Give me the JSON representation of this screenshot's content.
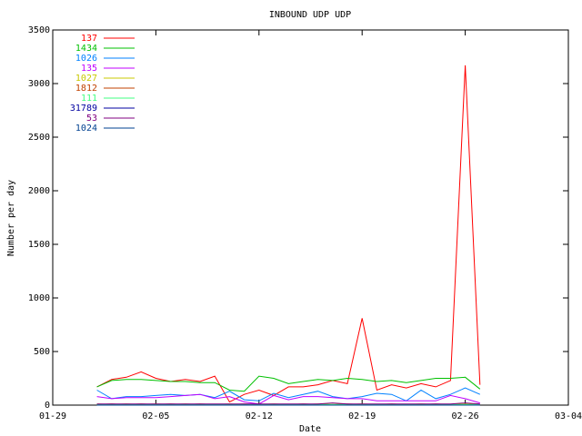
{
  "chart_data": {
    "type": "line",
    "title": "INBOUND UDP UDP",
    "x_label": "Date",
    "y_label": "Number per day",
    "x": [
      3,
      4,
      5,
      6,
      7,
      8,
      9,
      10,
      11,
      12,
      13,
      14,
      15,
      16,
      17,
      18,
      19,
      20,
      21,
      22,
      23,
      24,
      25,
      26,
      27,
      28,
      29
    ],
    "xlim": [
      0,
      35
    ],
    "xticks": [
      {
        "value": 0,
        "label": "01-29"
      },
      {
        "value": 7,
        "label": "02-05"
      },
      {
        "value": 14,
        "label": "02-12"
      },
      {
        "value": 21,
        "label": "02-19"
      },
      {
        "value": 28,
        "label": "02-26"
      },
      {
        "value": 35,
        "label": "03-04"
      }
    ],
    "ylim": [
      0,
      3500
    ],
    "yticks": [
      0,
      500,
      1000,
      1500,
      2000,
      2500,
      3000,
      3500
    ],
    "legend": "upper left",
    "series": [
      {
        "name": "137",
        "color": "#ff0000",
        "values": [
          170,
          240,
          260,
          310,
          250,
          220,
          240,
          220,
          270,
          30,
          100,
          140,
          90,
          170,
          170,
          190,
          230,
          200,
          810,
          140,
          190,
          160,
          200,
          170,
          230,
          3170,
          190
        ]
      },
      {
        "name": "1434",
        "color": "#00c000",
        "values": [
          170,
          230,
          240,
          240,
          230,
          220,
          220,
          210,
          210,
          140,
          130,
          270,
          250,
          200,
          220,
          240,
          230,
          250,
          240,
          220,
          230,
          210,
          230,
          250,
          250,
          260,
          150
        ]
      },
      {
        "name": "1026",
        "color": "#0080ff",
        "values": [
          140,
          60,
          80,
          80,
          90,
          100,
          90,
          100,
          70,
          130,
          50,
          40,
          110,
          70,
          100,
          130,
          80,
          60,
          80,
          110,
          100,
          40,
          140,
          60,
          100,
          160,
          100
        ]
      },
      {
        "name": "135",
        "color": "#c000ff",
        "values": [
          80,
          60,
          70,
          70,
          70,
          80,
          90,
          100,
          60,
          80,
          30,
          10,
          90,
          50,
          80,
          80,
          70,
          60,
          60,
          40,
          40,
          40,
          40,
          40,
          90,
          60,
          20
        ]
      },
      {
        "name": "1027",
        "color": "#c8c800",
        "values": [
          10,
          5,
          10,
          5,
          10,
          5,
          10,
          5,
          5,
          10,
          5,
          5,
          10,
          5,
          5,
          10,
          5,
          5,
          10,
          5,
          5,
          5,
          10,
          5,
          5,
          10,
          5
        ]
      },
      {
        "name": "1812",
        "color": "#c04000",
        "values": [
          5,
          10,
          5,
          10,
          5,
          10,
          5,
          10,
          5,
          5,
          10,
          5,
          5,
          5,
          10,
          5,
          5,
          10,
          5,
          5,
          10,
          5,
          5,
          10,
          5,
          5,
          5
        ]
      },
      {
        "name": "111",
        "color": "#40ff80",
        "values": [
          5,
          5,
          5,
          5,
          5,
          5,
          5,
          5,
          5,
          5,
          5,
          5,
          5,
          5,
          5,
          5,
          5,
          5,
          5,
          5,
          5,
          5,
          5,
          5,
          5,
          5,
          5
        ]
      },
      {
        "name": "31789",
        "color": "#0000a0",
        "values": [
          0,
          0,
          0,
          0,
          0,
          0,
          0,
          0,
          0,
          0,
          0,
          0,
          0,
          0,
          0,
          0,
          0,
          0,
          0,
          0,
          0,
          0,
          0,
          0,
          0,
          0,
          0
        ]
      },
      {
        "name": "53",
        "color": "#800080",
        "values": [
          10,
          10,
          10,
          10,
          10,
          10,
          10,
          10,
          10,
          10,
          10,
          10,
          10,
          10,
          10,
          10,
          20,
          10,
          10,
          10,
          10,
          10,
          10,
          10,
          10,
          20,
          10
        ]
      },
      {
        "name": "1024",
        "color": "#004090",
        "values": [
          0,
          0,
          0,
          0,
          0,
          0,
          0,
          0,
          0,
          0,
          0,
          0,
          0,
          0,
          0,
          0,
          0,
          0,
          0,
          0,
          0,
          0,
          0,
          0,
          0,
          0,
          0
        ]
      }
    ]
  }
}
